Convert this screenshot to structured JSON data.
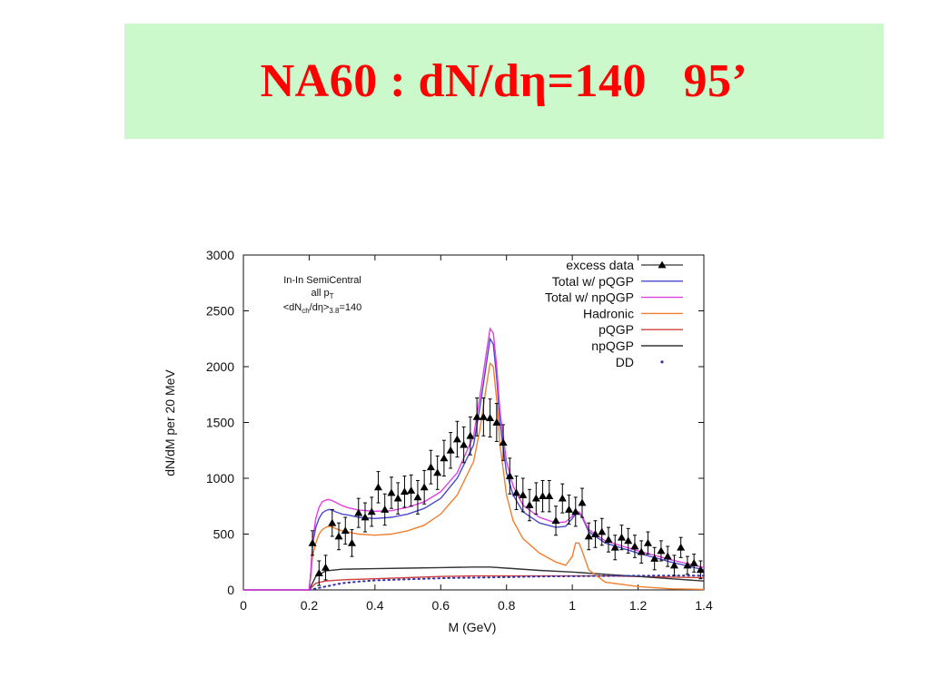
{
  "slide": {
    "title": "NA60 : dN/dη=140   95’"
  },
  "chart_data": {
    "type": "line",
    "title": "",
    "xlabel": "M (GeV)",
    "ylabel": "dN/dM per 20 MeV",
    "xlim": [
      0,
      1.4
    ],
    "ylim": [
      0,
      3000
    ],
    "x_ticks": [
      "0",
      "0.2",
      "0.4",
      "0.6",
      "0.8",
      "1",
      "1.2",
      "1.4"
    ],
    "y_ticks": [
      "0",
      "500",
      "1000",
      "1500",
      "2000",
      "2500",
      "3000"
    ],
    "grid": false,
    "legend_position": "top-right",
    "annotation": {
      "line1": "In-In SemiCentral",
      "line2_main": "all p",
      "line2_sub": "T",
      "line3_a": "<dN",
      "line3_sub1": "ch",
      "line3_b": "/dη>",
      "line3_sub2": "3.8",
      "line3_c": "=140"
    },
    "series": [
      {
        "name": "excess data",
        "color": "#000000",
        "style": "points",
        "x": [
          0.21,
          0.23,
          0.25,
          0.27,
          0.29,
          0.31,
          0.33,
          0.35,
          0.37,
          0.39,
          0.41,
          0.43,
          0.45,
          0.47,
          0.49,
          0.51,
          0.53,
          0.55,
          0.57,
          0.59,
          0.61,
          0.63,
          0.65,
          0.67,
          0.69,
          0.71,
          0.73,
          0.75,
          0.77,
          0.79,
          0.81,
          0.83,
          0.85,
          0.87,
          0.89,
          0.91,
          0.93,
          0.95,
          0.97,
          0.99,
          1.01,
          1.03,
          1.05,
          1.07,
          1.09,
          1.11,
          1.13,
          1.15,
          1.17,
          1.19,
          1.21,
          1.23,
          1.25,
          1.27,
          1.29,
          1.31,
          1.33,
          1.35,
          1.37,
          1.39
        ],
        "y": [
          420,
          150,
          200,
          600,
          480,
          530,
          420,
          690,
          650,
          700,
          920,
          720,
          870,
          820,
          880,
          890,
          830,
          920,
          1100,
          1050,
          1180,
          1250,
          1350,
          1300,
          1380,
          1550,
          1550,
          1540,
          1500,
          1320,
          1020,
          870,
          850,
          760,
          820,
          840,
          840,
          620,
          820,
          720,
          700,
          780,
          480,
          500,
          520,
          450,
          380,
          470,
          440,
          390,
          340,
          420,
          280,
          350,
          300,
          220,
          380,
          220,
          240,
          180
        ],
        "err": [
          110,
          110,
          110,
          120,
          120,
          120,
          120,
          130,
          130,
          130,
          140,
          140,
          140,
          140,
          140,
          140,
          150,
          150,
          150,
          150,
          160,
          160,
          160,
          160,
          170,
          170,
          170,
          170,
          170,
          160,
          160,
          150,
          150,
          140,
          140,
          140,
          140,
          130,
          130,
          130,
          130,
          130,
          120,
          120,
          120,
          110,
          110,
          110,
          110,
          100,
          100,
          100,
          100,
          90,
          90,
          90,
          90,
          80,
          80,
          80
        ]
      },
      {
        "name": "Total w/ pQGP",
        "color": "#4a4acc",
        "style": "line",
        "x": [
          0,
          0.2,
          0.205,
          0.21,
          0.22,
          0.23,
          0.24,
          0.25,
          0.26,
          0.27,
          0.28,
          0.29,
          0.3,
          0.32,
          0.35,
          0.4,
          0.45,
          0.5,
          0.55,
          0.6,
          0.65,
          0.7,
          0.72,
          0.74,
          0.75,
          0.76,
          0.77,
          0.78,
          0.8,
          0.82,
          0.85,
          0.9,
          0.95,
          0.98,
          1,
          1.01,
          1.02,
          1.03,
          1.05,
          1.1,
          1.2,
          1.3,
          1.4
        ],
        "y": [
          0,
          0,
          150,
          400,
          560,
          640,
          690,
          710,
          720,
          715,
          700,
          690,
          680,
          670,
          650,
          640,
          650,
          680,
          730,
          820,
          1000,
          1300,
          1650,
          2050,
          2250,
          2200,
          1900,
          1500,
          1050,
          850,
          700,
          600,
          560,
          570,
          640,
          680,
          690,
          650,
          520,
          420,
          330,
          250,
          180
        ]
      },
      {
        "name": "Total w/ npQGP",
        "color": "#e040e0",
        "style": "line",
        "x": [
          0,
          0.2,
          0.205,
          0.21,
          0.22,
          0.23,
          0.24,
          0.25,
          0.26,
          0.27,
          0.28,
          0.29,
          0.3,
          0.32,
          0.35,
          0.4,
          0.45,
          0.5,
          0.55,
          0.6,
          0.65,
          0.7,
          0.72,
          0.74,
          0.75,
          0.76,
          0.77,
          0.78,
          0.8,
          0.82,
          0.85,
          0.9,
          0.95,
          0.98,
          1,
          1.01,
          1.02,
          1.03,
          1.05,
          1.1,
          1.2,
          1.3,
          1.4
        ],
        "y": [
          0,
          0,
          160,
          430,
          640,
          740,
          790,
          805,
          810,
          800,
          785,
          770,
          755,
          735,
          715,
          705,
          710,
          740,
          790,
          880,
          1050,
          1380,
          1750,
          2150,
          2340,
          2300,
          2000,
          1600,
          1150,
          930,
          760,
          650,
          600,
          610,
          660,
          700,
          700,
          660,
          540,
          440,
          350,
          270,
          200
        ]
      },
      {
        "name": "Hadronic",
        "color": "#f08030",
        "style": "line",
        "x": [
          0,
          0.2,
          0.205,
          0.21,
          0.22,
          0.23,
          0.24,
          0.25,
          0.26,
          0.27,
          0.28,
          0.3,
          0.35,
          0.4,
          0.45,
          0.5,
          0.55,
          0.6,
          0.65,
          0.7,
          0.72,
          0.74,
          0.75,
          0.76,
          0.77,
          0.78,
          0.8,
          0.82,
          0.85,
          0.9,
          0.95,
          0.98,
          1,
          1.01,
          1.02,
          1.03,
          1.05,
          1.1,
          1.2,
          1.3,
          1.4
        ],
        "y": [
          0,
          0,
          120,
          300,
          420,
          500,
          540,
          560,
          570,
          565,
          550,
          530,
          500,
          490,
          500,
          530,
          580,
          680,
          850,
          1150,
          1450,
          1850,
          2030,
          2000,
          1700,
          1300,
          850,
          620,
          460,
          330,
          250,
          220,
          300,
          420,
          420,
          350,
          180,
          70,
          30,
          10,
          5
        ]
      },
      {
        "name": "pQGP",
        "color": "#d04040",
        "style": "line",
        "x": [
          0,
          0.2,
          0.21,
          0.22,
          0.25,
          0.3,
          0.4,
          0.5,
          0.6,
          0.7,
          0.75,
          0.8,
          0.9,
          1,
          1.1,
          1.2,
          1.3,
          1.4
        ],
        "y": [
          0,
          0,
          30,
          60,
          80,
          90,
          100,
          110,
          120,
          125,
          125,
          125,
          125,
          125,
          125,
          120,
          115,
          110
        ]
      },
      {
        "name": "npQGP",
        "color": "#333333",
        "style": "line",
        "x": [
          0,
          0.2,
          0.21,
          0.22,
          0.25,
          0.3,
          0.4,
          0.5,
          0.6,
          0.7,
          0.75,
          0.8,
          0.9,
          1,
          1.1,
          1.2,
          1.3,
          1.4
        ],
        "y": [
          0,
          0,
          60,
          120,
          170,
          185,
          190,
          195,
          200,
          205,
          205,
          195,
          175,
          160,
          140,
          120,
          100,
          80
        ]
      },
      {
        "name": "DD",
        "color": "#3030aa",
        "style": "dots",
        "x": [
          0.2,
          0.25,
          0.3,
          0.35,
          0.4,
          0.45,
          0.5,
          0.55,
          0.6,
          0.65,
          0.7,
          0.75,
          0.8,
          0.85,
          0.9,
          0.95,
          1,
          1.05,
          1.1,
          1.15,
          1.2,
          1.25,
          1.3,
          1.35,
          1.4
        ],
        "y": [
          0,
          30,
          60,
          75,
          85,
          90,
          95,
          100,
          105,
          108,
          110,
          112,
          115,
          118,
          120,
          122,
          123,
          124,
          125,
          126,
          127,
          128,
          128,
          128,
          128
        ]
      }
    ]
  }
}
